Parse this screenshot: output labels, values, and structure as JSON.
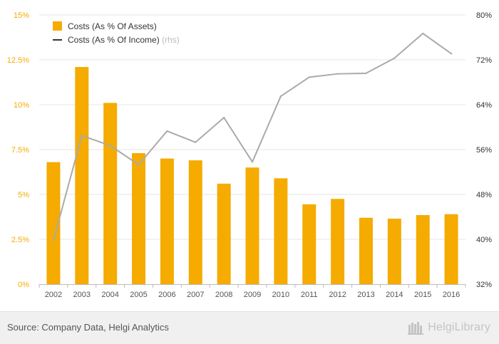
{
  "chart_data": {
    "type": "bar",
    "categories": [
      "2002",
      "2003",
      "2004",
      "2005",
      "2006",
      "2007",
      "2008",
      "2009",
      "2010",
      "2011",
      "2012",
      "2013",
      "2014",
      "2015",
      "2016"
    ],
    "series": [
      {
        "name": "Costs (As % Of Assets)",
        "type": "bar",
        "axis": "left",
        "color": "#f5ab00",
        "values": [
          6.8,
          12.1,
          10.1,
          7.3,
          7.0,
          6.9,
          5.6,
          6.5,
          5.9,
          4.45,
          4.75,
          3.7,
          3.65,
          3.85,
          3.9
        ]
      },
      {
        "name": "Costs (As % Of Income)",
        "suffix": "(rhs)",
        "type": "line",
        "axis": "right",
        "color": "#aaaaaa",
        "legend_color": "#333333",
        "values": [
          39.8,
          58.5,
          56.7,
          53.3,
          59.3,
          57.3,
          61.7,
          53.8,
          65.5,
          68.9,
          69.5,
          69.6,
          72.3,
          76.7,
          73.1
        ]
      }
    ],
    "y_left": {
      "ylim": [
        0,
        15
      ],
      "ticks": [
        0,
        2.5,
        5,
        7.5,
        10,
        12.5,
        15
      ],
      "tick_labels": [
        "0%",
        "2.5%",
        "5%",
        "7.5%",
        "10%",
        "12.5%",
        "15%"
      ],
      "color": "#f5ab00"
    },
    "y_right": {
      "ylim": [
        32,
        80
      ],
      "ticks": [
        32,
        40,
        48,
        56,
        64,
        72,
        80
      ],
      "tick_labels": [
        "32%",
        "40%",
        "48%",
        "56%",
        "64%",
        "72%",
        "80%"
      ],
      "color": "#333333"
    },
    "grid": true,
    "legend_position": "top-left",
    "title": "",
    "xlabel": "",
    "ylabel": ""
  },
  "footer": {
    "source": "Source: Company Data, Helgi Analytics",
    "brand_name": "HelgiLibrary",
    "brand_icon": "library-logo-icon"
  }
}
